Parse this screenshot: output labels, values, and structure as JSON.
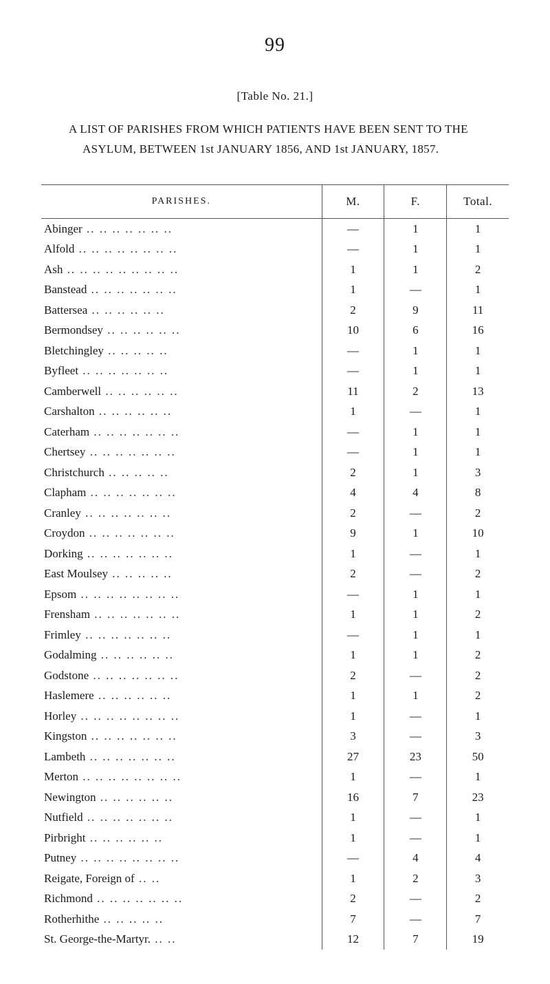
{
  "page_number": "99",
  "table_ref": "[Table No. 21.]",
  "title": "A LIST OF PARISHES FROM WHICH PATIENTS HAVE BEEN SENT TO THE ASYLUM, BETWEEN 1st JANUARY 1856, AND 1st JANUARY, 1857.",
  "headers": {
    "parishes": "PARISHES.",
    "m": "M.",
    "f": "F.",
    "total": "Total."
  },
  "rows": [
    {
      "parish": "Abinger",
      "m": "—",
      "f": "1",
      "t": "1"
    },
    {
      "parish": "Alfold",
      "m": "—",
      "f": "1",
      "t": "1"
    },
    {
      "parish": "Ash",
      "m": "1",
      "f": "1",
      "t": "2"
    },
    {
      "parish": "Banstead",
      "m": "1",
      "f": "—",
      "t": "1"
    },
    {
      "parish": "Battersea",
      "m": "2",
      "f": "9",
      "t": "11"
    },
    {
      "parish": "Bermondsey",
      "m": "10",
      "f": "6",
      "t": "16"
    },
    {
      "parish": "Bletchingley",
      "m": "—",
      "f": "1",
      "t": "1"
    },
    {
      "parish": "Byfleet",
      "m": "—",
      "f": "1",
      "t": "1"
    },
    {
      "parish": "Camberwell",
      "m": "11",
      "f": "2",
      "t": "13"
    },
    {
      "parish": "Carshalton",
      "m": "1",
      "f": "—",
      "t": "1"
    },
    {
      "parish": "Caterham",
      "m": "—",
      "f": "1",
      "t": "1"
    },
    {
      "parish": "Chertsey",
      "m": "—",
      "f": "1",
      "t": "1"
    },
    {
      "parish": "Christchurch",
      "m": "2",
      "f": "1",
      "t": "3"
    },
    {
      "parish": "Clapham",
      "m": "4",
      "f": "4",
      "t": "8"
    },
    {
      "parish": "Cranley",
      "m": "2",
      "f": "—",
      "t": "2"
    },
    {
      "parish": "Croydon",
      "m": "9",
      "f": "1",
      "t": "10"
    },
    {
      "parish": "Dorking",
      "m": "1",
      "f": "—",
      "t": "1"
    },
    {
      "parish": "East Moulsey",
      "m": "2",
      "f": "—",
      "t": "2"
    },
    {
      "parish": "Epsom",
      "m": "—",
      "f": "1",
      "t": "1"
    },
    {
      "parish": "Frensham",
      "m": "1",
      "f": "1",
      "t": "2"
    },
    {
      "parish": "Frimley",
      "m": "—",
      "f": "1",
      "t": "1"
    },
    {
      "parish": "Godalming",
      "m": "1",
      "f": "1",
      "t": "2"
    },
    {
      "parish": "Godstone",
      "m": "2",
      "f": "—",
      "t": "2"
    },
    {
      "parish": "Haslemere",
      "m": "1",
      "f": "1",
      "t": "2"
    },
    {
      "parish": "Horley",
      "m": "1",
      "f": "—",
      "t": "1"
    },
    {
      "parish": "Kingston",
      "m": "3",
      "f": "—",
      "t": "3"
    },
    {
      "parish": "Lambeth",
      "m": "27",
      "f": "23",
      "t": "50"
    },
    {
      "parish": "Merton",
      "m": "1",
      "f": "—",
      "t": "1"
    },
    {
      "parish": "Newington",
      "m": "16",
      "f": "7",
      "t": "23"
    },
    {
      "parish": "Nutfield",
      "m": "1",
      "f": "—",
      "t": "1"
    },
    {
      "parish": "Pirbright",
      "m": "1",
      "f": "—",
      "t": "1"
    },
    {
      "parish": "Putney",
      "m": "—",
      "f": "4",
      "t": "4"
    },
    {
      "parish": "Reigate, Foreign of",
      "m": "1",
      "f": "2",
      "t": "3"
    },
    {
      "parish": "Richmond",
      "m": "2",
      "f": "—",
      "t": "2"
    },
    {
      "parish": "Rotherhithe",
      "m": "7",
      "f": "—",
      "t": "7"
    },
    {
      "parish": "St. George-the-Martyr.",
      "m": "12",
      "f": "7",
      "t": "19"
    }
  ],
  "style": {
    "background_color": "#ffffff",
    "text_color": "#1a1a1a",
    "rule_color": "#555555",
    "font_family": "Times New Roman",
    "page_number_fontsize": 28,
    "body_fontsize": 17,
    "header_fontsize_small": 14,
    "line_height": 1.5,
    "dot_leader_char": ".."
  }
}
